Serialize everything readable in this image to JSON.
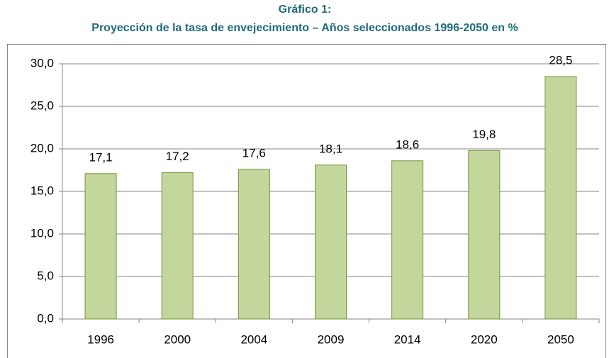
{
  "chart_data": {
    "type": "bar",
    "title": "Gráfico 1:",
    "subtitle": "Proyección de la tasa de envejecimiento – Años seleccionados 1996-2050 en %",
    "categories": [
      "1996",
      "2000",
      "2004",
      "2009",
      "2014",
      "2020",
      "2050"
    ],
    "values": [
      17.1,
      17.2,
      17.6,
      18.1,
      18.6,
      19.8,
      28.5
    ],
    "value_labels": [
      "17,1",
      "17,2",
      "17,6",
      "18,1",
      "18,6",
      "19,8",
      "28,5"
    ],
    "color": "#c3d69b",
    "ylim": [
      0,
      30
    ],
    "yticks": [
      {
        "value": 0,
        "label": "0,0"
      },
      {
        "value": 5,
        "label": "5,0"
      },
      {
        "value": 10,
        "label": "10,0"
      },
      {
        "value": 15,
        "label": "15,0"
      },
      {
        "value": 20,
        "label": "20,0"
      },
      {
        "value": 25,
        "label": "25,0"
      },
      {
        "value": 30,
        "label": "30,0"
      }
    ],
    "grid": true
  }
}
